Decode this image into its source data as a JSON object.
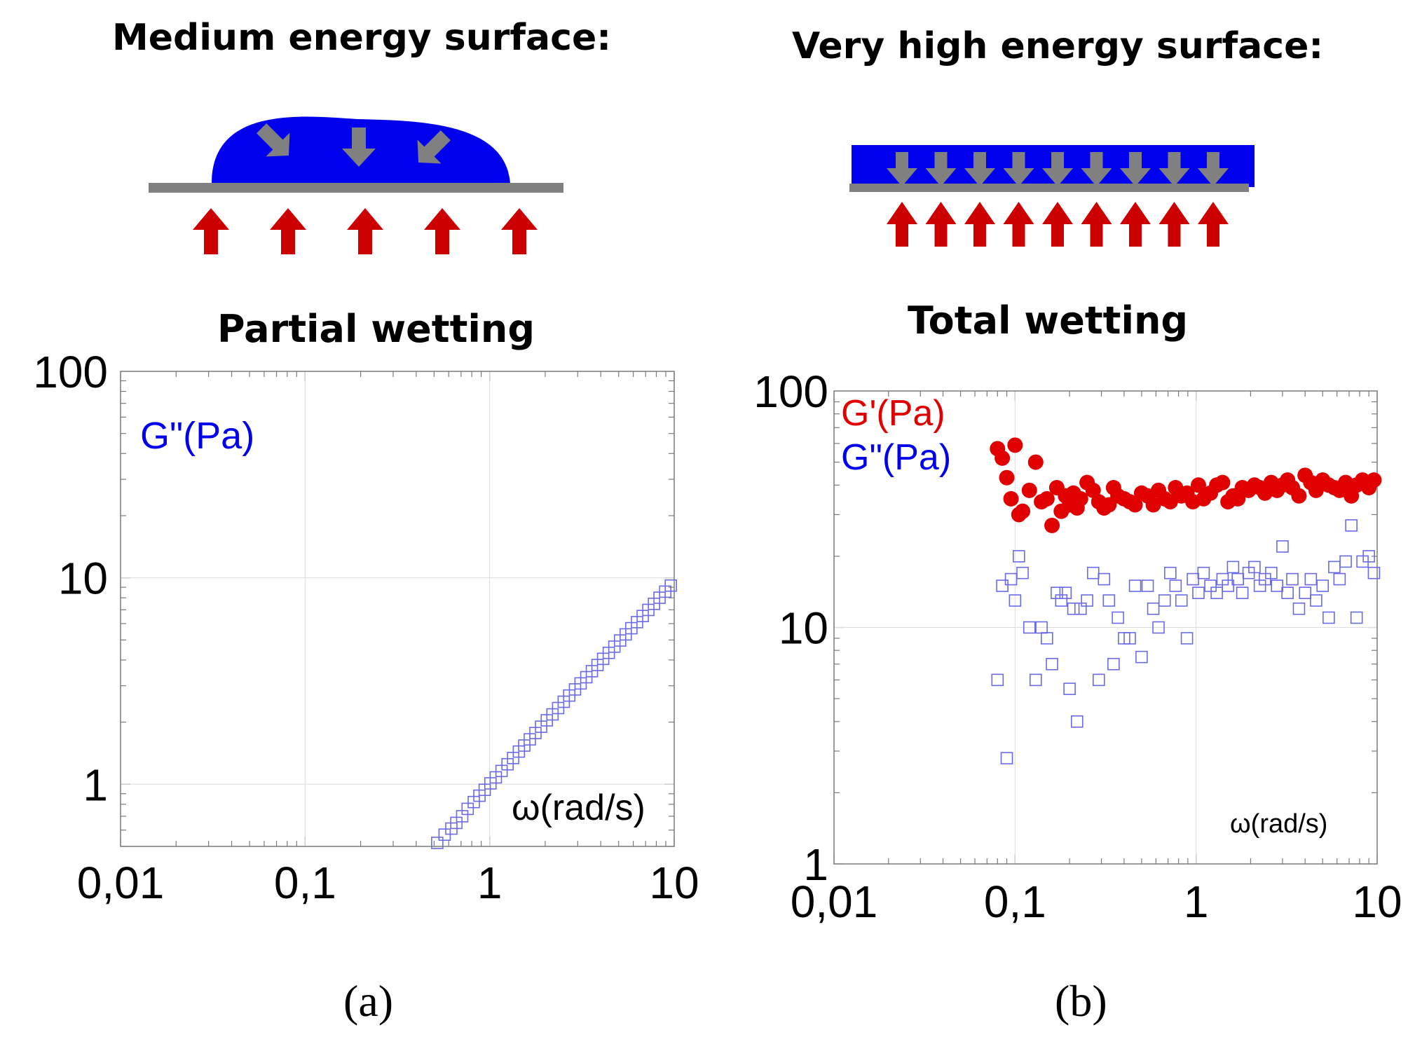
{
  "panel_a": {
    "surface_title": "Medium energy surface:",
    "chart_title": "Partial wetting",
    "label": "(a)"
  },
  "panel_b": {
    "surface_title": "Very high energy surface:",
    "chart_title": "Total wetting",
    "label": "(b)"
  },
  "colors": {
    "liquid": "#0000ee",
    "substrate": "#808080",
    "force_arrow": "#cc0000",
    "gprime": "#e00000",
    "gdouble": "#6a6ae8"
  },
  "chart_data": [
    {
      "type": "scatter",
      "title": "Partial wetting",
      "xscale": "log",
      "yscale": "log",
      "xlim": [
        0.01,
        10
      ],
      "ylim": [
        0.5,
        100
      ],
      "xticks": [
        "0,01",
        "0,1",
        "1",
        "10"
      ],
      "yticks": [
        "1",
        "10",
        "100"
      ],
      "legend": [
        {
          "name": "G\"(Pa)",
          "color": "#0000ee"
        }
      ],
      "xlabel": "ω(rad/s)",
      "series": [
        {
          "name": "G\"(Pa)",
          "marker": "open-square",
          "color": "#6a6ae8",
          "x": [
            0.52,
            0.57,
            0.62,
            0.66,
            0.71,
            0.76,
            0.82,
            0.88,
            0.94,
            1.01,
            1.08,
            1.16,
            1.25,
            1.34,
            1.44,
            1.54,
            1.65,
            1.77,
            1.9,
            2.04,
            2.19,
            2.35,
            2.52,
            2.7,
            2.9,
            3.11,
            3.34,
            3.58,
            3.84,
            4.12,
            4.42,
            4.74,
            5.09,
            5.46,
            5.86,
            6.29,
            6.75,
            7.24,
            7.77,
            8.33,
            8.94,
            9.59
          ],
          "y": [
            0.52,
            0.57,
            0.61,
            0.65,
            0.7,
            0.76,
            0.82,
            0.88,
            0.94,
            1.01,
            1.08,
            1.16,
            1.25,
            1.34,
            1.44,
            1.54,
            1.65,
            1.77,
            1.9,
            2.04,
            2.18,
            2.34,
            2.51,
            2.69,
            2.88,
            3.08,
            3.3,
            3.53,
            3.78,
            4.05,
            4.33,
            4.64,
            4.97,
            5.32,
            5.7,
            6.1,
            6.53,
            6.99,
            7.48,
            8.01,
            8.57,
            9.17
          ]
        }
      ]
    },
    {
      "type": "scatter",
      "title": "Total wetting",
      "xscale": "log",
      "yscale": "log",
      "xlim": [
        0.01,
        10
      ],
      "ylim": [
        1,
        100
      ],
      "xticks": [
        "0,01",
        "0,1",
        "1",
        "10"
      ],
      "yticks": [
        "1",
        "10",
        "100"
      ],
      "legend": [
        {
          "name": "G'(Pa)",
          "color": "#e00000"
        },
        {
          "name": "G\"(Pa)",
          "color": "#0000ee"
        }
      ],
      "xlabel": "ω(rad/s)",
      "series": [
        {
          "name": "G'(Pa)",
          "marker": "filled-circle",
          "color": "#e00000",
          "x": [
            0.08,
            0.085,
            0.09,
            0.095,
            0.1,
            0.105,
            0.11,
            0.12,
            0.13,
            0.14,
            0.15,
            0.16,
            0.17,
            0.18,
            0.19,
            0.2,
            0.21,
            0.22,
            0.23,
            0.25,
            0.27,
            0.29,
            0.31,
            0.33,
            0.35,
            0.37,
            0.4,
            0.43,
            0.46,
            0.5,
            0.54,
            0.58,
            0.62,
            0.67,
            0.72,
            0.77,
            0.83,
            0.89,
            0.96,
            1.03,
            1.1,
            1.2,
            1.3,
            1.4,
            1.5,
            1.6,
            1.7,
            1.8,
            1.95,
            2.1,
            2.25,
            2.4,
            2.6,
            2.8,
            3.0,
            3.2,
            3.4,
            3.7,
            4.0,
            4.3,
            4.6,
            5.0,
            5.4,
            5.8,
            6.2,
            6.7,
            7.2,
            7.7,
            8.3,
            9.0,
            9.6
          ],
          "y": [
            57,
            52,
            43,
            35,
            59,
            30,
            31,
            38,
            50,
            34,
            35,
            27,
            39,
            31,
            36,
            33,
            37,
            32,
            35,
            41,
            38,
            34,
            32,
            33,
            39,
            36,
            35,
            34,
            33,
            37,
            36,
            33,
            38,
            35,
            34,
            39,
            36,
            37,
            34,
            40,
            35,
            37,
            40,
            41,
            34,
            36,
            35,
            39,
            38,
            40,
            39,
            37,
            41,
            38,
            40,
            42,
            39,
            36,
            44,
            41,
            38,
            42,
            40,
            39,
            38,
            41,
            36,
            40,
            42,
            39,
            42
          ]
        },
        {
          "name": "G\"(Pa)",
          "marker": "open-square",
          "color": "#6a6ae8",
          "x": [
            0.08,
            0.085,
            0.09,
            0.095,
            0.1,
            0.105,
            0.11,
            0.12,
            0.13,
            0.14,
            0.15,
            0.16,
            0.17,
            0.18,
            0.19,
            0.2,
            0.21,
            0.22,
            0.23,
            0.25,
            0.27,
            0.29,
            0.31,
            0.33,
            0.35,
            0.37,
            0.4,
            0.43,
            0.46,
            0.5,
            0.54,
            0.58,
            0.62,
            0.67,
            0.72,
            0.77,
            0.83,
            0.89,
            0.96,
            1.03,
            1.1,
            1.2,
            1.3,
            1.4,
            1.5,
            1.6,
            1.7,
            1.8,
            1.95,
            2.1,
            2.25,
            2.4,
            2.6,
            2.8,
            3.0,
            3.2,
            3.4,
            3.7,
            4.0,
            4.3,
            4.6,
            5.0,
            5.4,
            5.8,
            6.2,
            6.7,
            7.2,
            7.7,
            8.3,
            9.0,
            9.6
          ],
          "y": [
            6,
            15,
            2.8,
            16,
            13,
            20,
            17,
            10,
            6,
            10,
            9,
            7,
            14,
            13,
            14,
            5.5,
            12,
            4,
            12,
            13,
            17,
            6,
            16,
            13,
            7,
            11,
            9,
            9,
            15,
            7.5,
            15,
            12,
            10,
            13,
            17,
            15,
            13,
            9,
            16,
            14,
            17,
            15,
            14,
            16,
            15,
            18,
            16,
            14,
            17,
            18,
            15,
            16,
            17,
            15,
            22,
            14,
            16,
            12,
            14,
            16,
            13,
            15,
            11,
            18,
            16,
            19,
            27,
            11,
            19,
            20,
            17
          ]
        }
      ]
    }
  ]
}
